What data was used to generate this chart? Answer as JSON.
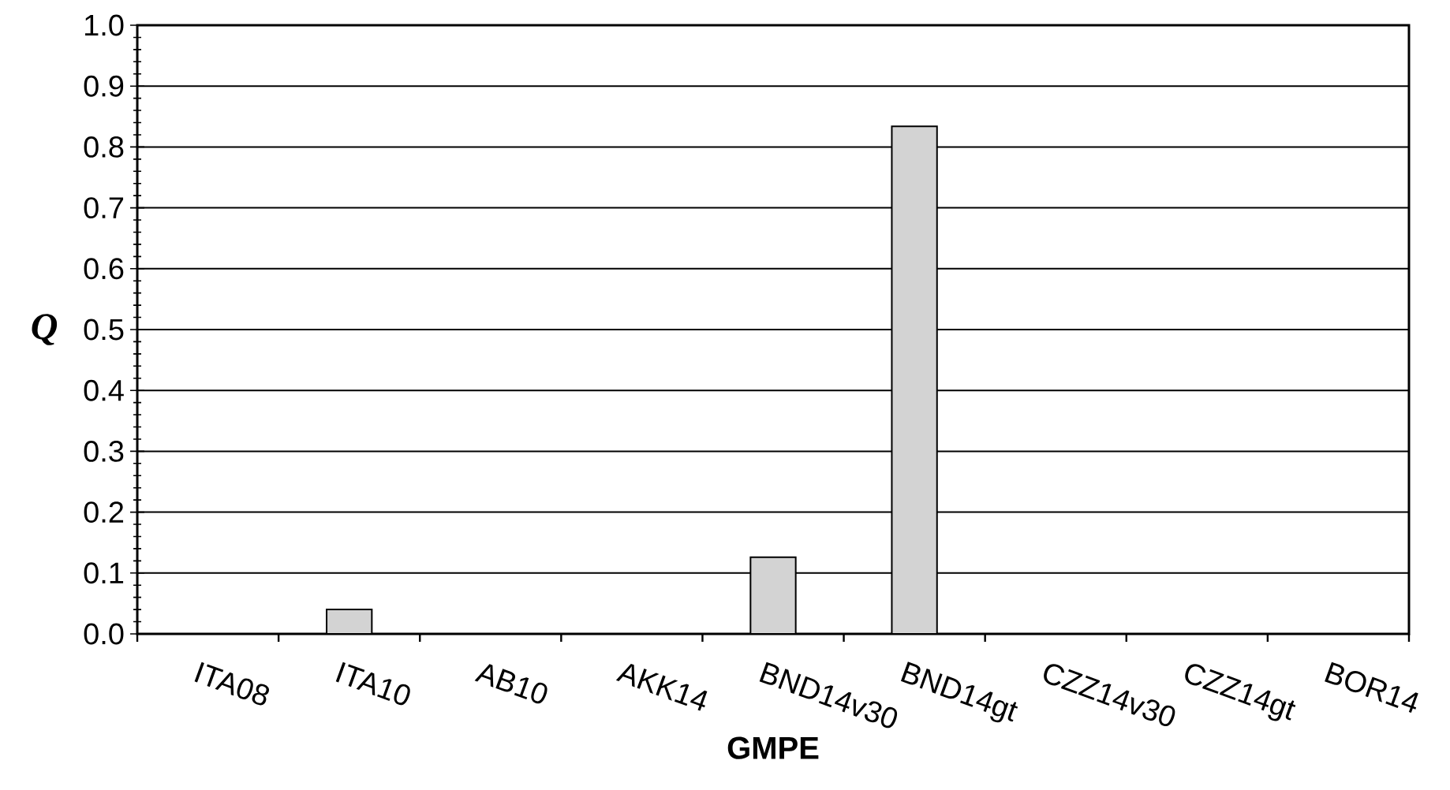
{
  "chart_data": {
    "type": "bar",
    "xlabel": "GMPE",
    "ylabel": "Q",
    "categories": [
      "ITA08",
      "ITA10",
      "AB10",
      "AKK14",
      "BND14v30",
      "BND14gt",
      "CZZ14v30",
      "CZZ14gt",
      "BOR14"
    ],
    "values": [
      0,
      0.04,
      0,
      0,
      0.126,
      0.834,
      0,
      0,
      0
    ],
    "color": "#d3d3d3",
    "ylim": [
      0,
      1
    ],
    "yticks": [
      {
        "value": 0,
        "label": "0.0"
      },
      {
        "value": 0.1,
        "label": "0.1"
      },
      {
        "value": 0.2,
        "label": "0.2"
      },
      {
        "value": 0.3,
        "label": "0.3"
      },
      {
        "value": 0.4,
        "label": "0.4"
      },
      {
        "value": 0.5,
        "label": "0.5"
      },
      {
        "value": 0.6,
        "label": "0.6"
      },
      {
        "value": 0.7,
        "label": "0.7"
      },
      {
        "value": 0.8,
        "label": "0.8"
      },
      {
        "value": 0.9,
        "label": "0.9"
      },
      {
        "value": 1,
        "label": "1.0"
      }
    ],
    "grid": "y"
  }
}
